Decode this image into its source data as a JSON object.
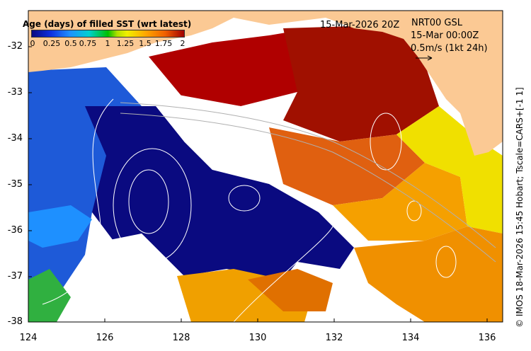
{
  "title_date": "15-Mar-2026 20Z",
  "current_label": "NRT00 GSL",
  "current_time": "15-Mar 00:00Z",
  "vector_scale": "0.5m/s (1kt 24h)",
  "legend": {
    "title": "Age (days) of filled SST (wrt latest)",
    "ticks": [
      "0",
      "0.25",
      "0.5",
      "0.75",
      "1",
      "1.25",
      "1.5",
      "1.75",
      "2"
    ]
  },
  "side_label": "© IMOS 18-Mar-2026 15:45 Hobart; Tscale=CARS+[-1 1]",
  "axes": {
    "y_ticks": [
      "-32",
      "-33",
      "-34",
      "-35",
      "-36",
      "-37",
      "-38"
    ],
    "x_ticks": [
      "124",
      "126",
      "128",
      "130",
      "132",
      "134",
      "136"
    ]
  },
  "colors": {
    "land": "#fbc994",
    "age_0": "#0a0a80",
    "age_mid": "#00c000",
    "age_2": "#a00000"
  }
}
